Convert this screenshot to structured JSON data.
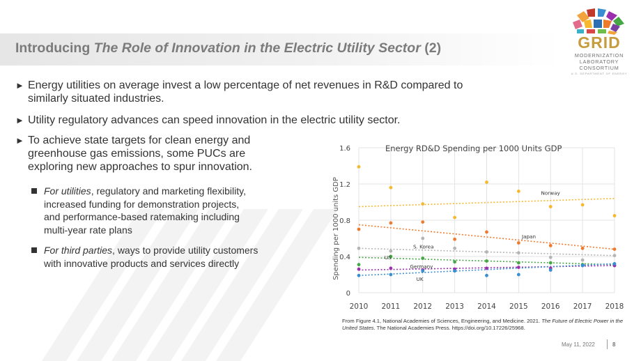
{
  "slide": {
    "title_prefix": "Introducing ",
    "title_emphasis": "The Role of Innovation in the Electric Utility Sector",
    "title_suffix": " (2)",
    "bullets": [
      {
        "text_line1": "Energy utilities on average invest a low percentage of net revenues in R&D compared to",
        "text_line2": "similarly situated industries."
      },
      {
        "text_line1": "Utility regulatory advances can speed innovation in the electric utility sector."
      },
      {
        "text_line1": "To achieve state targets for clean energy and",
        "text_line2": "greenhouse gas emissions, some PUCs are",
        "text_line3": "exploring new approaches to spur innovation."
      }
    ],
    "sub_bullets": [
      {
        "lead": "For utilities",
        "lines": [
          ", regulatory and marketing flexibility,",
          "increased funding for demonstration projects,",
          "and performance-based ratemaking including",
          "multi-year rate plans"
        ]
      },
      {
        "lead": "For third parties",
        "lines": [
          ", ways to provide utility customers",
          "with innovative products and services directly"
        ]
      }
    ],
    "caption": {
      "pre": "From Figure 4.1, National Academies of Sciences, Engineering, and Medicine. 2021. ",
      "em": "The Future of Electric Power in the United States",
      "post": ". The National Academies Press. https://doi.org/10.17226/25968."
    },
    "footer": {
      "date": "May 11, 2022",
      "page": "8"
    }
  },
  "logo": {
    "word": "GRID",
    "lines": [
      "MODERNIZATION",
      "LABORATORY",
      "CONSORTIUM"
    ],
    "fine_print": "U.S. DEPARTMENT OF ENERGY"
  },
  "colors": {
    "norway": "#f5b82e",
    "japan": "#ee7a2d",
    "skorea": "#b5b5b5",
    "germany": "#45a845",
    "us": "#9b2fae",
    "uk": "#3a8fd1",
    "logo_gold": "#c69c3e"
  },
  "chart_data": {
    "type": "scatter",
    "title": "Energy RD&D Spending per 1000 Units GDP",
    "xlabel": "",
    "ylabel": "Spending per 1000 units GDP",
    "x": [
      2010,
      2011,
      2012,
      2013,
      2014,
      2015,
      2016,
      2017,
      2018
    ],
    "ylim": [
      0,
      1.6
    ],
    "yticks": [
      0,
      0.4,
      0.8,
      1.2,
      1.6
    ],
    "grid": true,
    "trendlines": "dotted linear fit per series",
    "series": [
      {
        "name": "Norway",
        "color_key": "norway",
        "values": [
          1.39,
          1.16,
          0.98,
          0.83,
          1.22,
          1.12,
          0.95,
          0.97,
          0.85
        ],
        "trend": [
          0.95,
          1.04
        ]
      },
      {
        "name": "Japan",
        "color_key": "japan",
        "values": [
          0.7,
          0.77,
          0.78,
          0.59,
          0.67,
          0.55,
          0.52,
          0.49,
          0.48
        ],
        "trend": [
          0.75,
          0.48
        ]
      },
      {
        "name": "S. Korea",
        "color_key": "skorea",
        "values": [
          0.49,
          0.46,
          0.6,
          0.49,
          0.45,
          0.44,
          0.39,
          0.36,
          0.41
        ],
        "trend": [
          0.49,
          0.41
        ]
      },
      {
        "name": "Germany",
        "color_key": "germany",
        "values": [
          0.31,
          0.4,
          0.38,
          0.34,
          0.35,
          0.33,
          0.33,
          0.31,
          0.3
        ],
        "trend": [
          0.39,
          0.31
        ]
      },
      {
        "name": "US",
        "color_key": "us",
        "values": [
          0.26,
          0.27,
          0.25,
          0.26,
          0.27,
          0.28,
          0.27,
          0.3,
          0.3
        ],
        "trend": [
          0.25,
          0.3
        ]
      },
      {
        "name": "UK",
        "color_key": "uk",
        "values": [
          0.19,
          0.2,
          0.24,
          0.24,
          0.19,
          0.2,
          0.25,
          0.3,
          0.32
        ],
        "trend": [
          0.19,
          0.32
        ]
      }
    ]
  }
}
